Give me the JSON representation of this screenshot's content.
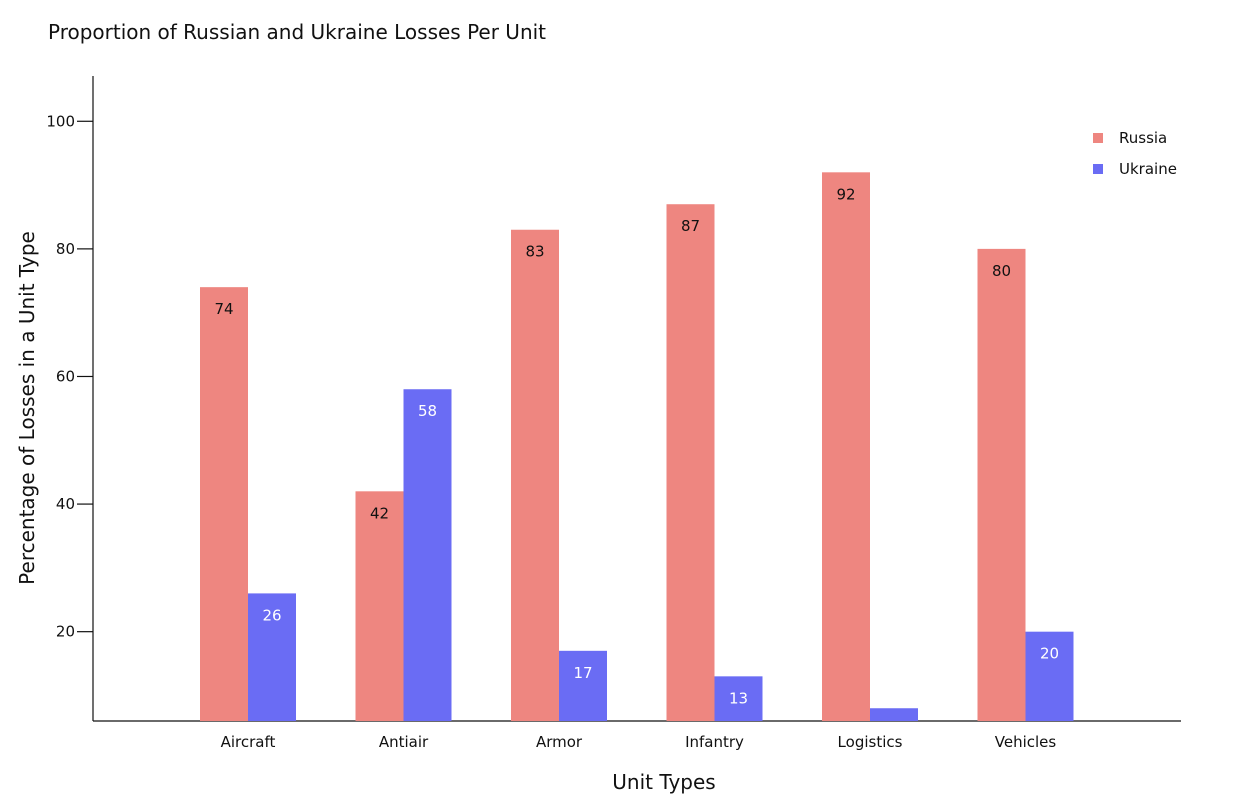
{
  "chart_data": {
    "type": "bar",
    "title": "Proportion of Russian and Ukraine Losses Per Unit",
    "xlabel": "Unit Types",
    "ylabel": "Percentage of Losses in a Unit Type",
    "categories": [
      "Aircraft",
      "Antiair",
      "Armor",
      "Infantry",
      "Logistics",
      "Vehicles"
    ],
    "series": [
      {
        "name": "Russia",
        "color": "#EE8680",
        "label_color": "#111111",
        "values": [
          74,
          42,
          83,
          87,
          92,
          80
        ]
      },
      {
        "name": "Ukraine",
        "color": "#6A6CF4",
        "label_color": "#ffffff",
        "values": [
          26,
          58,
          17,
          13,
          8,
          20
        ]
      }
    ],
    "ylim": [
      6,
      106
    ],
    "yticks": [
      "20",
      "40",
      "60",
      "80",
      "100"
    ],
    "legend_position": "top-right",
    "grid": false
  }
}
